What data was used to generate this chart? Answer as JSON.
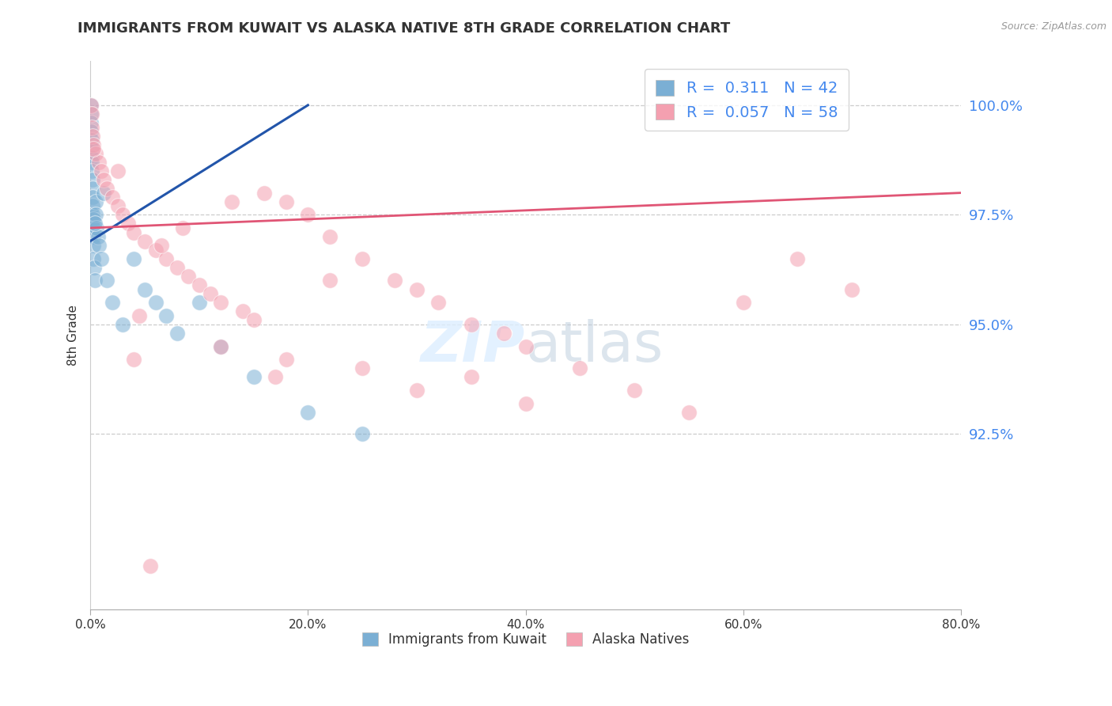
{
  "title": "IMMIGRANTS FROM KUWAIT VS ALASKA NATIVE 8TH GRADE CORRELATION CHART",
  "source": "Source: ZipAtlas.com",
  "ylabel": "8th Grade",
  "legend_label1": "Immigrants from Kuwait",
  "legend_label2": "Alaska Natives",
  "R1": 0.311,
  "N1": 42,
  "R2": 0.057,
  "N2": 58,
  "blue_color": "#7BAFD4",
  "pink_color": "#F4A0B0",
  "blue_line_color": "#2255AA",
  "pink_line_color": "#E05575",
  "ytick_color": "#4488EE",
  "watermark_color": "#DDEEFF",
  "blue_x": [
    0.05,
    0.05,
    0.08,
    0.08,
    0.1,
    0.1,
    0.12,
    0.15,
    0.15,
    0.18,
    0.18,
    0.2,
    0.2,
    0.22,
    0.25,
    0.25,
    0.28,
    0.3,
    0.3,
    0.35,
    0.4,
    0.5,
    0.5,
    0.6,
    0.7,
    0.8,
    1.0,
    1.5,
    2.0,
    3.0,
    4.0,
    5.0,
    6.0,
    7.0,
    8.0,
    10.0,
    12.0,
    15.0,
    20.0,
    25.0,
    1.2,
    0.4
  ],
  "blue_y": [
    100.0,
    99.8,
    99.6,
    99.4,
    99.2,
    99.0,
    98.8,
    98.7,
    98.5,
    98.3,
    98.1,
    97.9,
    97.7,
    97.5,
    97.4,
    97.2,
    97.0,
    96.8,
    96.5,
    96.3,
    96.0,
    97.8,
    97.5,
    97.2,
    97.0,
    96.8,
    96.5,
    96.0,
    95.5,
    95.0,
    96.5,
    95.8,
    95.5,
    95.2,
    94.8,
    95.5,
    94.5,
    93.8,
    93.0,
    92.5,
    98.0,
    97.3
  ],
  "pink_x": [
    0.08,
    0.1,
    0.15,
    0.2,
    0.3,
    0.5,
    0.8,
    1.0,
    1.2,
    1.5,
    2.0,
    2.5,
    3.0,
    3.5,
    4.0,
    5.0,
    6.0,
    7.0,
    8.0,
    9.0,
    10.0,
    11.0,
    12.0,
    14.0,
    15.0,
    16.0,
    18.0,
    20.0,
    22.0,
    25.0,
    28.0,
    30.0,
    32.0,
    35.0,
    38.0,
    40.0,
    45.0,
    50.0,
    55.0,
    60.0,
    65.0,
    70.0,
    4.0,
    6.5,
    8.5,
    13.0,
    17.0,
    22.0,
    30.0,
    35.0,
    0.3,
    2.5,
    4.5,
    12.0,
    18.0,
    25.0,
    40.0,
    5.5
  ],
  "pink_y": [
    100.0,
    99.8,
    99.5,
    99.3,
    99.1,
    98.9,
    98.7,
    98.5,
    98.3,
    98.1,
    97.9,
    97.7,
    97.5,
    97.3,
    97.1,
    96.9,
    96.7,
    96.5,
    96.3,
    96.1,
    95.9,
    95.7,
    95.5,
    95.3,
    95.1,
    98.0,
    97.8,
    97.5,
    97.0,
    96.5,
    96.0,
    95.8,
    95.5,
    95.0,
    94.8,
    94.5,
    94.0,
    93.5,
    93.0,
    95.5,
    96.5,
    95.8,
    94.2,
    96.8,
    97.2,
    97.8,
    93.8,
    96.0,
    93.5,
    93.8,
    99.0,
    98.5,
    95.2,
    94.5,
    94.2,
    94.0,
    93.2,
    89.5
  ],
  "blue_line_x0": 0,
  "blue_line_y0": 96.9,
  "blue_line_x1": 20,
  "blue_line_y1": 100.0,
  "pink_line_x0": 0,
  "pink_line_y0": 97.2,
  "pink_line_x1": 80,
  "pink_line_y1": 98.0,
  "xmin": 0,
  "xmax": 80,
  "ymin": 88.5,
  "ymax": 101.0,
  "yticks": [
    92.5,
    95.0,
    97.5,
    100.0
  ],
  "xtick_labels": [
    "0.0%",
    "20.0%",
    "40.0%",
    "60.0%",
    "80.0%"
  ],
  "xtick_vals": [
    0,
    20,
    40,
    60,
    80
  ]
}
